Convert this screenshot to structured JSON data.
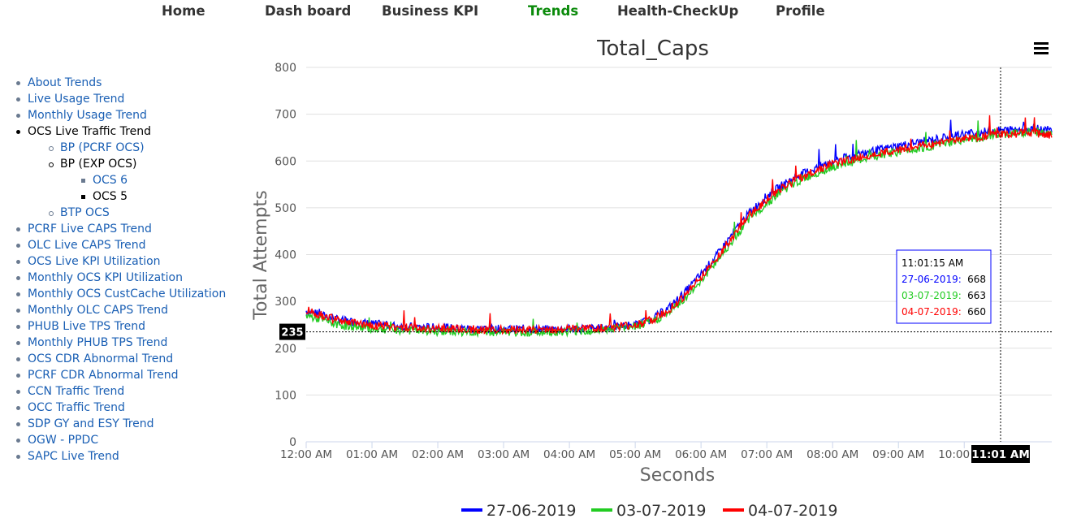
{
  "nav": {
    "items": [
      {
        "label": "Home",
        "active": false
      },
      {
        "label": "Dash board",
        "active": false
      },
      {
        "label": "Business KPI",
        "active": false
      },
      {
        "label": "Trends",
        "active": true
      },
      {
        "label": "Health-CheckUp",
        "active": false
      },
      {
        "label": "Profile",
        "active": false
      }
    ],
    "active_color": "#0a8a0a"
  },
  "sidebar": {
    "items": [
      {
        "label": "About Trends",
        "level": 0,
        "link": true
      },
      {
        "label": "Live Usage Trend",
        "level": 0,
        "link": true
      },
      {
        "label": "Monthly Usage Trend",
        "level": 0,
        "link": true
      },
      {
        "label": "OCS Live Traffic Trend",
        "level": 0,
        "link": false
      },
      {
        "label": "BP (PCRF OCS)",
        "level": 1,
        "link": true
      },
      {
        "label": "BP (EXP OCS)",
        "level": 1,
        "link": false
      },
      {
        "label": "OCS 6",
        "level": 2,
        "link": true
      },
      {
        "label": "OCS 5",
        "level": 2,
        "link": false
      },
      {
        "label": "BTP OCS",
        "level": 1,
        "link": true
      },
      {
        "label": "PCRF Live CAPS Trend",
        "level": 0,
        "link": true
      },
      {
        "label": "OLC Live CAPS Trend",
        "level": 0,
        "link": true
      },
      {
        "label": "OCS Live KPI Utilization",
        "level": 0,
        "link": true
      },
      {
        "label": "Monthly OCS KPI Utilization",
        "level": 0,
        "link": true
      },
      {
        "label": "Monthly OCS CustCache Utilization",
        "level": 0,
        "link": true
      },
      {
        "label": "Monthly OLC CAPS Trend",
        "level": 0,
        "link": true
      },
      {
        "label": "PHUB Live TPS Trend",
        "level": 0,
        "link": true
      },
      {
        "label": "Monthly PHUB TPS Trend",
        "level": 0,
        "link": true
      },
      {
        "label": "OCS CDR Abnormal Trend",
        "level": 0,
        "link": true
      },
      {
        "label": "PCRF CDR Abnormal Trend",
        "level": 0,
        "link": true
      },
      {
        "label": "CCN Traffic Trend",
        "level": 0,
        "link": true
      },
      {
        "label": "OCC Traffic Trend",
        "level": 0,
        "link": true
      },
      {
        "label": "SDP GY and ESY Trend",
        "level": 0,
        "link": true
      },
      {
        "label": "OGW - PPDC",
        "level": 0,
        "link": true
      },
      {
        "label": "SAPC Live Trend",
        "level": 0,
        "link": true
      }
    ]
  },
  "chart_menu_icon": "hamburger-menu-icon",
  "chart_data": {
    "type": "line",
    "title": "Total_Caps",
    "xlabel": "Seconds",
    "ylabel": "Total Attempts",
    "ylim": [
      0,
      800
    ],
    "yticks": [
      0,
      100,
      200,
      300,
      400,
      500,
      600,
      700,
      800
    ],
    "xlim": [
      "12:00 AM",
      "11:20 AM"
    ],
    "xticks": [
      "12:00 AM",
      "01:00 AM",
      "02:00 AM",
      "03:00 AM",
      "04:00 AM",
      "05:00 AM",
      "06:00 AM",
      "07:00 AM",
      "08:00 AM",
      "09:00 AM",
      "10:00 AM"
    ],
    "grid": true,
    "legend": "bottom-center",
    "crosshair": {
      "x_label": "11:01 AM",
      "y_label": "235"
    },
    "tooltip": {
      "time": "11:01:15 AM",
      "entries": [
        {
          "series": "27-06-2019",
          "value": 668
        },
        {
          "series": "03-07-2019",
          "value": 663
        },
        {
          "series": "04-07-2019",
          "value": 660
        }
      ]
    },
    "x_hours": [
      0,
      0.5,
      1,
      1.5,
      2,
      2.5,
      3,
      3.5,
      4,
      4.5,
      5,
      5.25,
      5.5,
      5.75,
      6,
      6.25,
      6.5,
      6.75,
      7,
      7.25,
      7.5,
      7.75,
      8,
      8.5,
      9,
      9.5,
      10,
      10.5,
      11,
      11.33
    ],
    "series": [
      {
        "name": "27-06-2019",
        "color": "#0000ff",
        "values": [
          280,
          260,
          252,
          246,
          244,
          242,
          241,
          240,
          241,
          243,
          250,
          262,
          285,
          318,
          358,
          400,
          448,
          492,
          525,
          550,
          570,
          585,
          600,
          618,
          632,
          645,
          658,
          665,
          670,
          665
        ]
      },
      {
        "name": "03-07-2019",
        "color": "#22cc22",
        "values": [
          270,
          250,
          242,
          238,
          236,
          234,
          234,
          234,
          236,
          239,
          246,
          256,
          275,
          305,
          345,
          388,
          435,
          478,
          510,
          538,
          558,
          574,
          588,
          605,
          620,
          632,
          645,
          655,
          663,
          658
        ]
      },
      {
        "name": "04-07-2019",
        "color": "#ff0000",
        "values": [
          282,
          258,
          249,
          244,
          242,
          240,
          240,
          240,
          241,
          243,
          249,
          260,
          280,
          312,
          352,
          395,
          442,
          486,
          518,
          544,
          564,
          580,
          594,
          610,
          624,
          636,
          648,
          656,
          660,
          656
        ]
      }
    ]
  }
}
